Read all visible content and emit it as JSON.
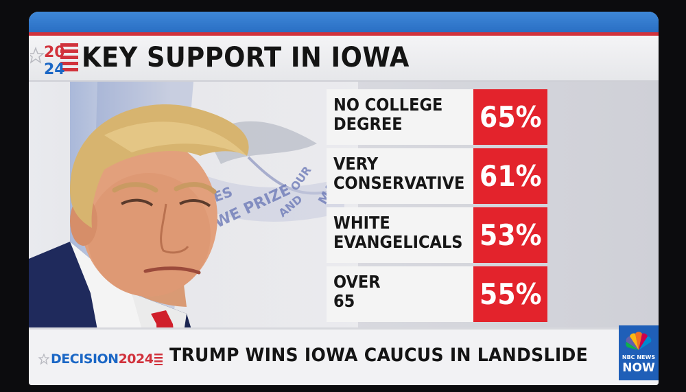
{
  "header": {
    "logo_year_top": "20",
    "logo_year_bottom": "24",
    "title": "KEY SUPPORT IN IOWA"
  },
  "flag": {
    "motto_words": [
      "IES",
      "WE PRIZE",
      "AND",
      "OUR",
      "MAI"
    ]
  },
  "stats": [
    {
      "line1": "NO COLLEGE",
      "line2": "DEGREE",
      "value": "65%"
    },
    {
      "line1": "VERY",
      "line2": "CONSERVATIVE",
      "value": "61%"
    },
    {
      "line1": "WHITE",
      "line2": "EVANGELICALS",
      "value": "53%"
    },
    {
      "line1": "OVER",
      "line2": "65",
      "value": "55%"
    }
  ],
  "lower_third": {
    "brand_text": "DECISION",
    "brand_year": "2024",
    "headline": "TRUMP WINS IOWA CAUCUS IN LANDSLIDE"
  },
  "network": {
    "name": "NBC NEWS",
    "sub": "NOW"
  },
  "colors": {
    "accent_red": "#e3232c",
    "accent_blue": "#1b67c5",
    "bar_blue": "#2a6fc4"
  }
}
